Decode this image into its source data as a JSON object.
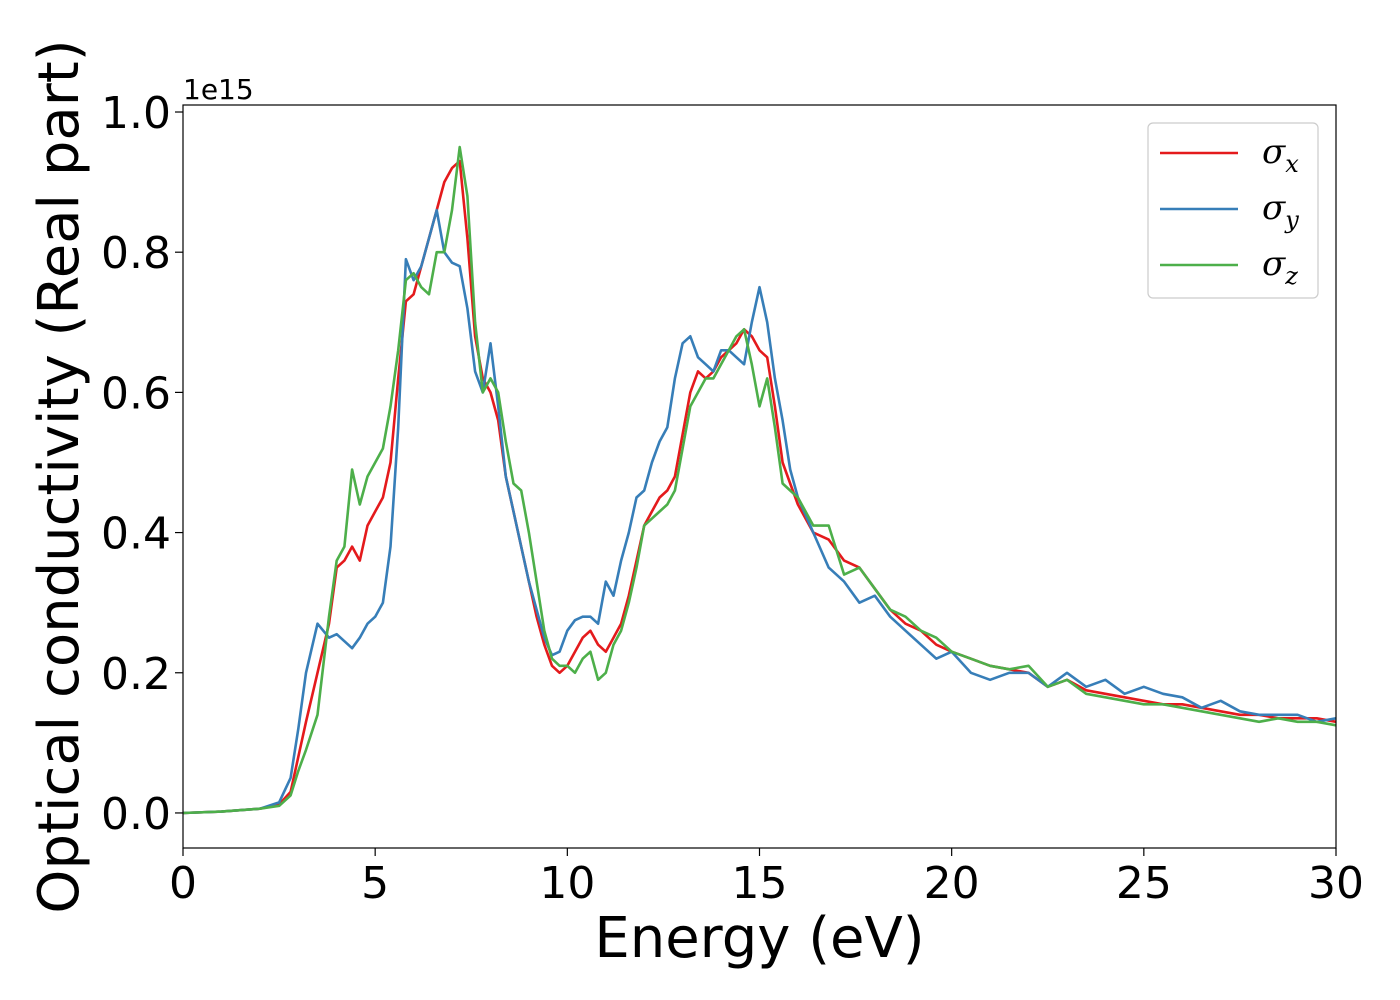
{
  "chart_data": {
    "type": "line",
    "title": "",
    "xlabel": "Energy (eV)",
    "ylabel": "Optical conductivity (Real part)",
    "y_offset_label": "1e15",
    "xlim": [
      0,
      30
    ],
    "ylim": [
      -0.05,
      1.01
    ],
    "xticks": [
      0,
      5,
      10,
      15,
      20,
      25,
      30
    ],
    "yticks": [
      0.0,
      0.2,
      0.4,
      0.6,
      0.8,
      1.0
    ],
    "xtick_labels": [
      "0",
      "5",
      "10",
      "15",
      "20",
      "25",
      "30"
    ],
    "ytick_labels": [
      "0.0",
      "0.2",
      "0.4",
      "0.6",
      "0.8",
      "1.0"
    ],
    "grid": false,
    "legend_position": "top-right",
    "series": [
      {
        "name": "σx",
        "symbol": "σ",
        "subscript": "x",
        "color": "#e41a1c",
        "x": [
          0,
          1,
          2,
          2.5,
          2.8,
          3.0,
          3.2,
          3.5,
          3.8,
          4.0,
          4.2,
          4.4,
          4.6,
          4.8,
          5.0,
          5.2,
          5.4,
          5.6,
          5.8,
          6.0,
          6.2,
          6.4,
          6.6,
          6.8,
          7.0,
          7.2,
          7.4,
          7.6,
          7.8,
          8.0,
          8.2,
          8.4,
          8.6,
          8.8,
          9.0,
          9.2,
          9.4,
          9.6,
          9.8,
          10.0,
          10.2,
          10.4,
          10.6,
          10.8,
          11.0,
          11.2,
          11.4,
          11.6,
          11.8,
          12.0,
          12.2,
          12.4,
          12.6,
          12.8,
          13.0,
          13.2,
          13.4,
          13.6,
          13.8,
          14.0,
          14.2,
          14.4,
          14.6,
          14.8,
          15.0,
          15.2,
          15.4,
          15.6,
          15.8,
          16.0,
          16.4,
          16.8,
          17.2,
          17.6,
          18.0,
          18.4,
          18.8,
          19.2,
          19.6,
          20.0,
          20.5,
          21.0,
          21.5,
          22.0,
          22.5,
          23.0,
          23.5,
          24.0,
          24.5,
          25.0,
          25.5,
          26.0,
          26.5,
          27.0,
          27.5,
          28.0,
          28.5,
          29.0,
          29.5,
          30.0
        ],
        "y": [
          0.0,
          0.002,
          0.006,
          0.012,
          0.03,
          0.08,
          0.13,
          0.2,
          0.27,
          0.35,
          0.36,
          0.38,
          0.36,
          0.41,
          0.43,
          0.45,
          0.5,
          0.62,
          0.73,
          0.74,
          0.78,
          0.82,
          0.86,
          0.9,
          0.92,
          0.93,
          0.82,
          0.68,
          0.62,
          0.6,
          0.56,
          0.48,
          0.43,
          0.38,
          0.33,
          0.28,
          0.24,
          0.21,
          0.2,
          0.21,
          0.23,
          0.25,
          0.26,
          0.24,
          0.23,
          0.25,
          0.27,
          0.31,
          0.36,
          0.41,
          0.43,
          0.45,
          0.46,
          0.48,
          0.54,
          0.6,
          0.63,
          0.62,
          0.63,
          0.65,
          0.66,
          0.67,
          0.69,
          0.68,
          0.66,
          0.65,
          0.58,
          0.5,
          0.47,
          0.44,
          0.4,
          0.39,
          0.36,
          0.35,
          0.32,
          0.29,
          0.27,
          0.26,
          0.24,
          0.23,
          0.22,
          0.21,
          0.205,
          0.2,
          0.18,
          0.19,
          0.175,
          0.17,
          0.165,
          0.16,
          0.155,
          0.155,
          0.15,
          0.145,
          0.14,
          0.14,
          0.135,
          0.135,
          0.135,
          0.13
        ]
      },
      {
        "name": "σy",
        "symbol": "σ",
        "subscript": "y",
        "color": "#377eb8",
        "x": [
          0,
          1,
          2,
          2.5,
          2.8,
          3.0,
          3.2,
          3.5,
          3.8,
          4.0,
          4.2,
          4.4,
          4.6,
          4.8,
          5.0,
          5.2,
          5.4,
          5.6,
          5.8,
          6.0,
          6.2,
          6.4,
          6.6,
          6.8,
          7.0,
          7.2,
          7.4,
          7.6,
          7.8,
          8.0,
          8.2,
          8.4,
          8.6,
          8.8,
          9.0,
          9.2,
          9.4,
          9.6,
          9.8,
          10.0,
          10.2,
          10.4,
          10.6,
          10.8,
          11.0,
          11.2,
          11.4,
          11.6,
          11.8,
          12.0,
          12.2,
          12.4,
          12.6,
          12.8,
          13.0,
          13.2,
          13.4,
          13.6,
          13.8,
          14.0,
          14.2,
          14.4,
          14.6,
          14.8,
          15.0,
          15.2,
          15.4,
          15.6,
          15.8,
          16.0,
          16.4,
          16.8,
          17.2,
          17.6,
          18.0,
          18.4,
          18.8,
          19.2,
          19.6,
          20.0,
          20.5,
          21.0,
          21.5,
          22.0,
          22.5,
          23.0,
          23.5,
          24.0,
          24.5,
          25.0,
          25.5,
          26.0,
          26.5,
          27.0,
          27.5,
          28.0,
          28.5,
          29.0,
          29.5,
          30.0
        ],
        "y": [
          0.0,
          0.002,
          0.006,
          0.015,
          0.05,
          0.12,
          0.2,
          0.27,
          0.25,
          0.255,
          0.245,
          0.235,
          0.25,
          0.27,
          0.28,
          0.3,
          0.38,
          0.55,
          0.79,
          0.76,
          0.78,
          0.82,
          0.86,
          0.8,
          0.785,
          0.78,
          0.72,
          0.63,
          0.6,
          0.67,
          0.58,
          0.48,
          0.43,
          0.38,
          0.33,
          0.29,
          0.25,
          0.225,
          0.23,
          0.26,
          0.275,
          0.28,
          0.28,
          0.27,
          0.33,
          0.31,
          0.36,
          0.4,
          0.45,
          0.46,
          0.5,
          0.53,
          0.55,
          0.62,
          0.67,
          0.68,
          0.65,
          0.64,
          0.63,
          0.66,
          0.66,
          0.65,
          0.64,
          0.7,
          0.75,
          0.7,
          0.62,
          0.56,
          0.49,
          0.45,
          0.4,
          0.35,
          0.33,
          0.3,
          0.31,
          0.28,
          0.26,
          0.24,
          0.22,
          0.23,
          0.2,
          0.19,
          0.2,
          0.2,
          0.18,
          0.2,
          0.18,
          0.19,
          0.17,
          0.18,
          0.17,
          0.165,
          0.15,
          0.16,
          0.145,
          0.14,
          0.14,
          0.14,
          0.13,
          0.135
        ]
      },
      {
        "name": "σz",
        "symbol": "σ",
        "subscript": "z",
        "color": "#4daf4a",
        "x": [
          0,
          1,
          2,
          2.5,
          2.8,
          3.0,
          3.2,
          3.5,
          3.8,
          4.0,
          4.2,
          4.4,
          4.6,
          4.8,
          5.0,
          5.2,
          5.4,
          5.6,
          5.8,
          6.0,
          6.2,
          6.4,
          6.6,
          6.8,
          7.0,
          7.2,
          7.4,
          7.6,
          7.8,
          8.0,
          8.2,
          8.4,
          8.6,
          8.8,
          9.0,
          9.2,
          9.4,
          9.6,
          9.8,
          10.0,
          10.2,
          10.4,
          10.6,
          10.8,
          11.0,
          11.2,
          11.4,
          11.6,
          11.8,
          12.0,
          12.2,
          12.4,
          12.6,
          12.8,
          13.0,
          13.2,
          13.4,
          13.6,
          13.8,
          14.0,
          14.2,
          14.4,
          14.6,
          14.8,
          15.0,
          15.2,
          15.4,
          15.6,
          15.8,
          16.0,
          16.4,
          16.8,
          17.2,
          17.6,
          18.0,
          18.4,
          18.8,
          19.2,
          19.6,
          20.0,
          20.5,
          21.0,
          21.5,
          22.0,
          22.5,
          23.0,
          23.5,
          24.0,
          24.5,
          25.0,
          25.5,
          26.0,
          26.5,
          27.0,
          27.5,
          28.0,
          28.5,
          29.0,
          29.5,
          30.0
        ],
        "y": [
          0.0,
          0.002,
          0.006,
          0.01,
          0.025,
          0.06,
          0.09,
          0.14,
          0.28,
          0.36,
          0.38,
          0.49,
          0.44,
          0.48,
          0.5,
          0.52,
          0.58,
          0.66,
          0.76,
          0.77,
          0.75,
          0.74,
          0.8,
          0.8,
          0.86,
          0.95,
          0.88,
          0.7,
          0.6,
          0.62,
          0.6,
          0.53,
          0.47,
          0.46,
          0.4,
          0.33,
          0.26,
          0.22,
          0.21,
          0.21,
          0.2,
          0.22,
          0.23,
          0.19,
          0.2,
          0.24,
          0.26,
          0.3,
          0.35,
          0.41,
          0.42,
          0.43,
          0.44,
          0.46,
          0.52,
          0.58,
          0.6,
          0.62,
          0.62,
          0.64,
          0.66,
          0.68,
          0.69,
          0.64,
          0.58,
          0.62,
          0.55,
          0.47,
          0.46,
          0.45,
          0.41,
          0.41,
          0.34,
          0.35,
          0.32,
          0.29,
          0.28,
          0.26,
          0.25,
          0.23,
          0.22,
          0.21,
          0.205,
          0.21,
          0.18,
          0.19,
          0.17,
          0.165,
          0.16,
          0.155,
          0.155,
          0.15,
          0.145,
          0.14,
          0.135,
          0.13,
          0.135,
          0.13,
          0.13,
          0.125
        ]
      }
    ]
  }
}
